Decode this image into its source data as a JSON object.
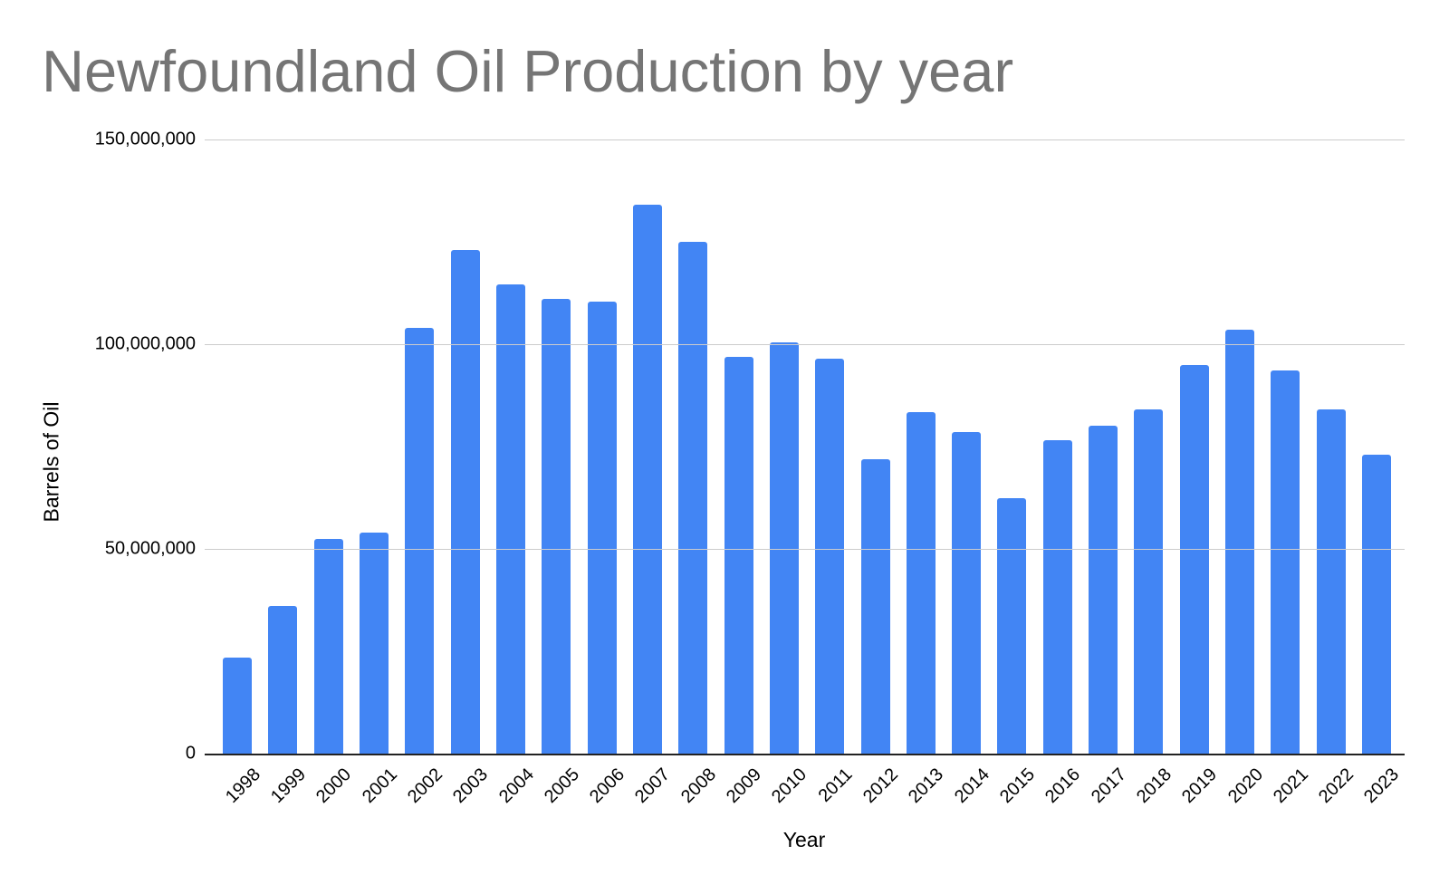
{
  "chart_data": {
    "type": "bar",
    "title": "Newfoundland Oil Production by year",
    "xlabel": "Year",
    "ylabel": "Barrels of Oil",
    "categories": [
      "1998",
      "1999",
      "2000",
      "2001",
      "2002",
      "2003",
      "2004",
      "2005",
      "2006",
      "2007",
      "2008",
      "2009",
      "2010",
      "2011",
      "2012",
      "2013",
      "2014",
      "2015",
      "2016",
      "2017",
      "2018",
      "2019",
      "2020",
      "2021",
      "2022",
      "2023"
    ],
    "values": [
      23500000,
      36000000,
      52500000,
      54000000,
      104000000,
      123000000,
      114500000,
      111000000,
      110500000,
      134000000,
      125000000,
      97000000,
      100500000,
      96500000,
      72000000,
      83500000,
      78500000,
      62500000,
      76500000,
      80000000,
      84000000,
      95000000,
      103500000,
      93500000,
      84000000,
      73000000
    ],
    "ylim": [
      0,
      150000000
    ],
    "yticks": [
      {
        "label": "0",
        "value": 0
      },
      {
        "label": "50,000,000",
        "value": 50000000
      },
      {
        "label": "100,000,000",
        "value": 100000000
      },
      {
        "label": "150,000,000",
        "value": 150000000
      }
    ],
    "grid": true,
    "legend": "none",
    "colors": {
      "bar": "#4285f4",
      "gridline": "#cccccc",
      "axis_line": "#222222",
      "title_text": "#757575",
      "tick_text": "#000000"
    }
  }
}
